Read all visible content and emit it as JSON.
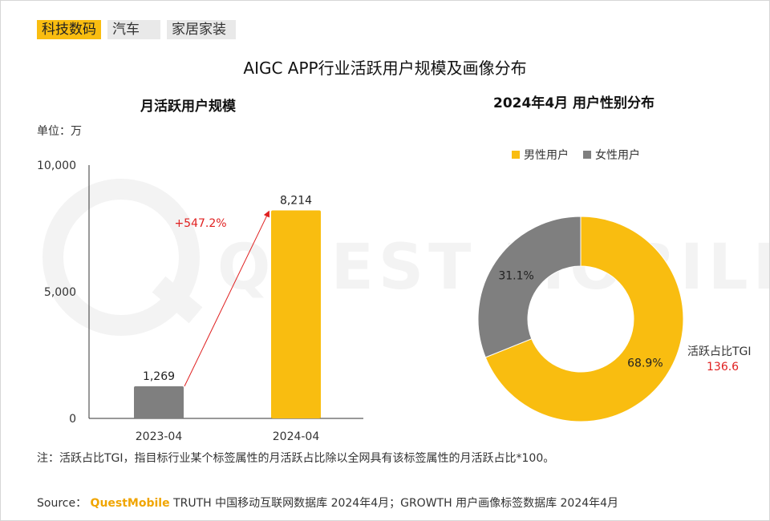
{
  "tabs": [
    {
      "label": "科技数码",
      "active": true
    },
    {
      "label": "汽车",
      "active": false
    },
    {
      "label": "家居家装",
      "active": false
    }
  ],
  "title": "AIGC APP行业活跃用户规模及画像分布",
  "watermark": "QUEST MOBILE",
  "left_panel": {
    "subtitle": "月活跃用户规模",
    "unit": "单位：万"
  },
  "right_panel": {
    "subtitle": "2024年4月 用户性别分布",
    "tgi_label": "活跃占比TGI",
    "tgi_value": "136.6"
  },
  "note": "注：活跃占比TGI，指目标行业某个标签属性的月活跃占比除以全网具有该标签属性的月活跃占比*100。",
  "source": {
    "prefix": "Source：",
    "brand": "QuestMobile",
    "text": "TRUTH 中国移动互联网数据库 2024年4月；GROWTH 用户画像标签数据库 2024年4月"
  },
  "colors": {
    "accent": "#f9bd10",
    "gray": "#7f7f7f",
    "red": "#e02020"
  },
  "chart_data": [
    {
      "type": "bar",
      "title": "月活跃用户规模",
      "categories": [
        "2023-04",
        "2024-04"
      ],
      "values": [
        1269,
        8214
      ],
      "value_labels": [
        "1,269",
        "8,214"
      ],
      "ylim": [
        0,
        10000
      ],
      "yticks": [
        0,
        5000,
        10000
      ],
      "ytick_labels": [
        "0",
        "5,000",
        "10,000"
      ],
      "bar_colors": [
        "#7f7f7f",
        "#f9bd10"
      ],
      "annotation": "+547.2%",
      "grid": false
    },
    {
      "type": "pie",
      "title": "2024年4月 用户性别分布",
      "donut": true,
      "legend_position": "top",
      "slices": [
        {
          "name": "男性用户",
          "value": 68.9,
          "label": "68.9%",
          "color": "#f9bd10"
        },
        {
          "name": "女性用户",
          "value": 31.1,
          "label": "31.1%",
          "color": "#7f7f7f"
        }
      ]
    }
  ]
}
